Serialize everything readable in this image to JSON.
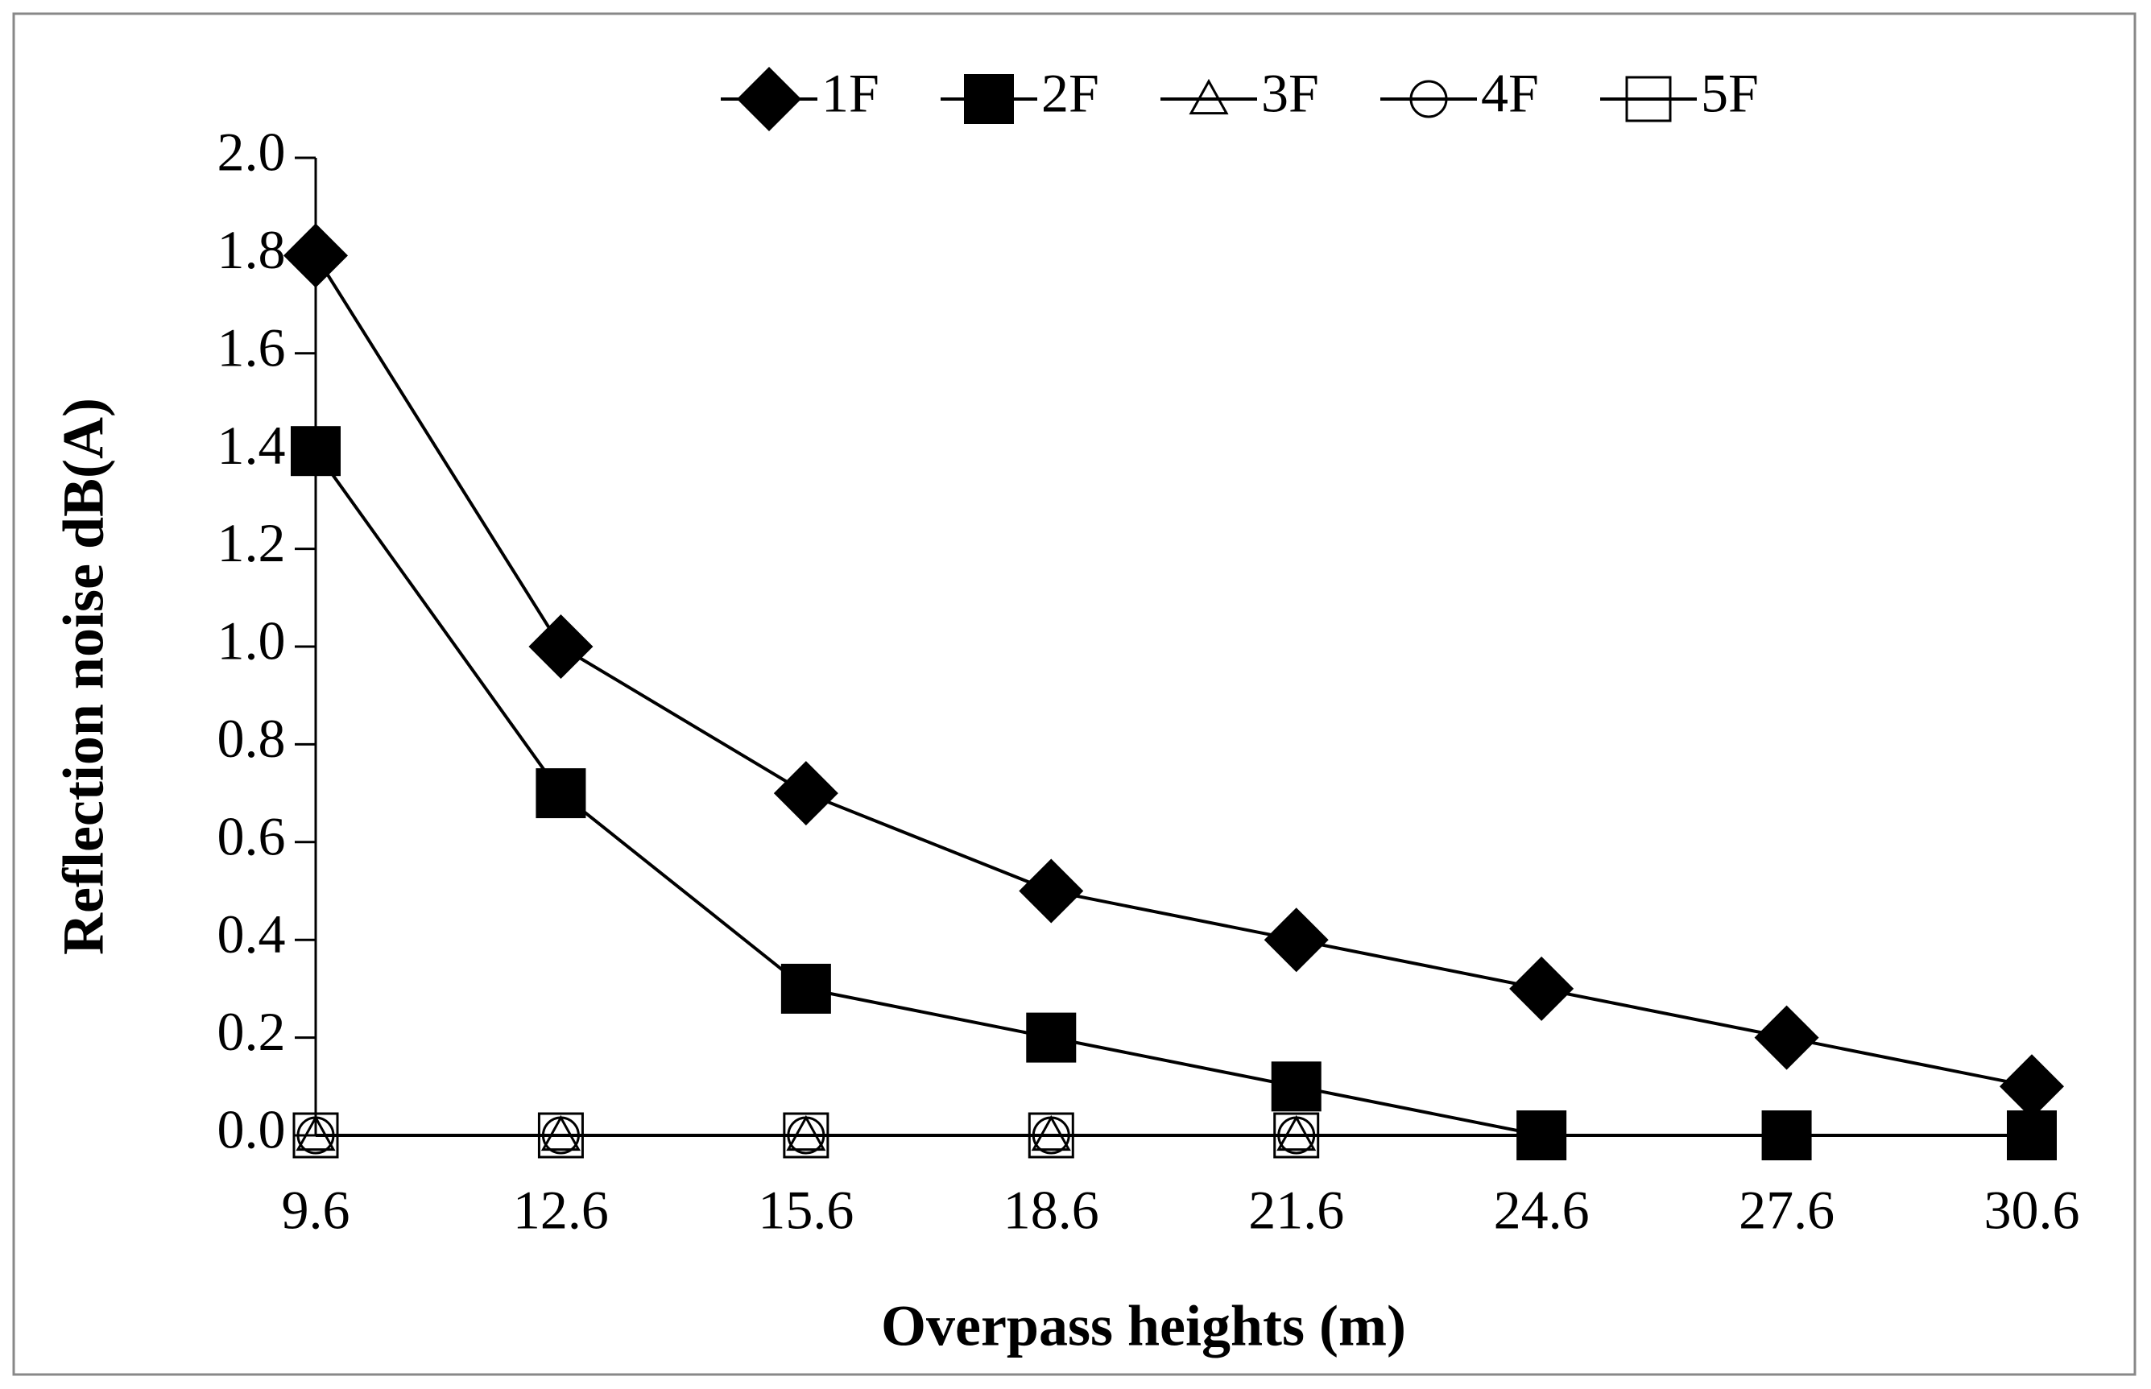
{
  "chart_data": {
    "type": "line",
    "xlabel": "Overpass heights (m)",
    "ylabel": "Reflection noise dB(A)",
    "categories": [
      "9.6",
      "12.6",
      "15.6",
      "18.6",
      "21.6",
      "24.6",
      "27.6",
      "30.6"
    ],
    "series": [
      {
        "name": "1F",
        "color": "#000000",
        "marker": "diamond",
        "values": [
          1.8,
          1.0,
          0.7,
          0.5,
          0.4,
          0.3,
          0.2,
          0.1
        ]
      },
      {
        "name": "2F",
        "color": "#000000",
        "marker": "square",
        "values": [
          1.4,
          0.7,
          0.3,
          0.2,
          0.1,
          0,
          0,
          0
        ]
      },
      {
        "name": "3F",
        "color": "#000000",
        "marker": "triangle-open",
        "values": [
          0,
          0,
          0,
          0,
          0,
          0,
          0,
          0
        ]
      },
      {
        "name": "4F",
        "color": "#000000",
        "marker": "circle-open",
        "values": [
          0,
          0,
          0,
          0,
          0,
          0,
          0,
          0
        ]
      },
      {
        "name": "5F",
        "color": "#000000",
        "marker": "square-open",
        "values": [
          0,
          0,
          0,
          0,
          0,
          0,
          0,
          0
        ]
      }
    ],
    "ylim": [
      0,
      2
    ],
    "yticks": [
      {
        "value": 0,
        "label": "0.0"
      },
      {
        "value": 0.2,
        "label": "0.2"
      },
      {
        "value": 0.4,
        "label": "0.4"
      },
      {
        "value": 0.6,
        "label": "0.6"
      },
      {
        "value": 0.8,
        "label": "0.8"
      },
      {
        "value": 1,
        "label": "1.0"
      },
      {
        "value": 1.2,
        "label": "1.2"
      },
      {
        "value": 1.4,
        "label": "1.4"
      },
      {
        "value": 1.6,
        "label": "1.6"
      },
      {
        "value": 1.8,
        "label": "1.8"
      },
      {
        "value": 2,
        "label": "2.0"
      }
    ],
    "legend": "top",
    "grid": false
  }
}
